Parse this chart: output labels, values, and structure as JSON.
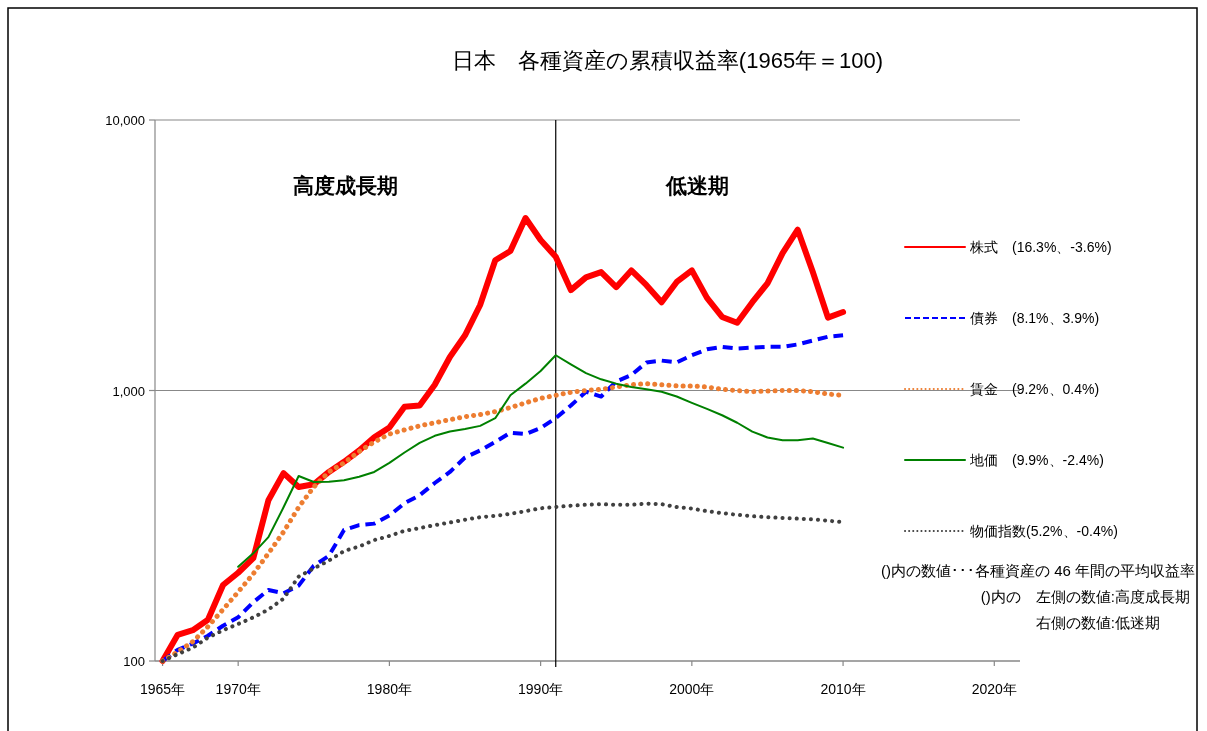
{
  "chart_data": {
    "type": "line",
    "title": "日本　各種資産の累積収益率(1965年＝100)",
    "x": [
      1965,
      1966,
      1967,
      1968,
      1969,
      1970,
      1971,
      1972,
      1973,
      1974,
      1975,
      1976,
      1977,
      1978,
      1979,
      1980,
      1981,
      1982,
      1983,
      1984,
      1985,
      1986,
      1987,
      1988,
      1989,
      1990,
      1991,
      1992,
      1993,
      1994,
      1995,
      1996,
      1997,
      1998,
      1999,
      2000,
      2001,
      2002,
      2003,
      2004,
      2005,
      2006,
      2007,
      2008,
      2009,
      2010
    ],
    "series": [
      {
        "name": "株式　(16.3%、-3.6%)",
        "color": "#ff0000",
        "line_style": "solid",
        "values": [
          100,
          125,
          130,
          142,
          191,
          212,
          240,
          393,
          495,
          440,
          450,
          500,
          545,
          600,
          672,
          730,
          871,
          880,
          1050,
          1330,
          1600,
          2070,
          3030,
          3280,
          4340,
          3600,
          3120,
          2350,
          2620,
          2740,
          2410,
          2780,
          2450,
          2120,
          2520,
          2780,
          2200,
          1870,
          1780,
          2120,
          2490,
          3220,
          3930,
          2740,
          1860,
          1950
        ]
      },
      {
        "name": "債券　(8.1%、3.9%)",
        "color": "#0000ff",
        "line_style": "dashed",
        "values": [
          100,
          110,
          116,
          124,
          135,
          145,
          165,
          183,
          178,
          190,
          225,
          245,
          305,
          318,
          322,
          345,
          383,
          410,
          455,
          500,
          565,
          600,
          645,
          698,
          690,
          727,
          790,
          880,
          990,
          950,
          1080,
          1140,
          1270,
          1290,
          1270,
          1350,
          1420,
          1450,
          1430,
          1440,
          1450,
          1450,
          1480,
          1530,
          1580,
          1600
        ]
      },
      {
        "name": "賃金　(9.2%、0.4%)",
        "color": "#ed7d31",
        "line_style": "dotted",
        "values": [
          100,
          108,
          118,
          134,
          155,
          180,
          210,
          250,
          300,
          370,
          440,
          500,
          540,
          595,
          645,
          690,
          715,
          740,
          760,
          780,
          800,
          815,
          835,
          865,
          900,
          935,
          960,
          985,
          1000,
          1010,
          1030,
          1050,
          1060,
          1050,
          1040,
          1040,
          1030,
          1010,
          1000,
          990,
          995,
          1000,
          1000,
          990,
          970,
          960
        ]
      },
      {
        "name": "地価　(9.9%、-2.4%)",
        "color": "#008000",
        "line_style": "solid",
        "values": [
          null,
          null,
          null,
          null,
          null,
          223,
          250,
          287,
          370,
          483,
          459,
          460,
          466,
          480,
          500,
          540,
          590,
          640,
          680,
          705,
          720,
          740,
          790,
          960,
          1060,
          1180,
          1350,
          1250,
          1160,
          1100,
          1060,
          1030,
          1010,
          990,
          950,
          900,
          855,
          810,
          760,
          705,
          670,
          655,
          655,
          665,
          640,
          615
        ]
      },
      {
        "name": "物価指数(5.2%、-0.4%)",
        "color": "#404040",
        "line_style": "dotted",
        "values": [
          100,
          106,
          112,
          122,
          130,
          137,
          145,
          155,
          170,
          205,
          220,
          235,
          255,
          265,
          280,
          290,
          303,
          310,
          318,
          325,
          333,
          340,
          344,
          350,
          358,
          367,
          371,
          375,
          378,
          380,
          378,
          378,
          382,
          380,
          371,
          366,
          358,
          352,
          347,
          343,
          340,
          338,
          336,
          334,
          330,
          326
        ]
      }
    ],
    "xlim": [
      1964.5,
      2021.7
    ],
    "xticks": [
      {
        "value": 1965,
        "label": "1965年"
      },
      {
        "value": 1970,
        "label": "1970年"
      },
      {
        "value": 1980,
        "label": "1980年"
      },
      {
        "value": 1990,
        "label": "1990年"
      },
      {
        "value": 2000,
        "label": "2000年"
      },
      {
        "value": 2010,
        "label": "2010年"
      },
      {
        "value": 2020,
        "label": "2020年"
      }
    ],
    "ylim": [
      100,
      10000
    ],
    "yticks": [
      {
        "value": 100,
        "label": "100"
      },
      {
        "value": 1000,
        "label": "1,000"
      },
      {
        "value": 10000,
        "label": "10,000"
      }
    ],
    "log": "y",
    "grid": "y",
    "legend": "right",
    "ref_lines": [
      {
        "axis": "x",
        "value": 1991,
        "color": "#000000"
      }
    ],
    "annotations": [
      "高度成長期",
      "低迷期",
      "()内の数値･･･各種資産の 46 年間の平均収益率",
      "()内の　左側の数値:高度成長期",
      "右側の数値:低迷期"
    ]
  }
}
